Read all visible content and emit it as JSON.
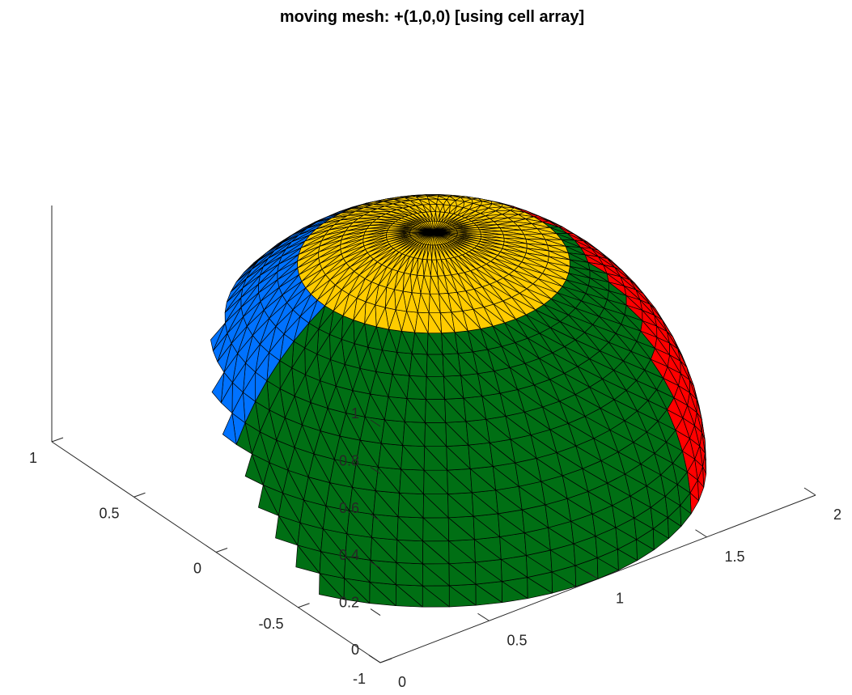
{
  "chart_data": {
    "type": "surface",
    "title": "moving mesh: +(1,0,0) [using cell array]",
    "translation": [
      1,
      0,
      0
    ],
    "patches": [
      {
        "color": "#0072ff",
        "x_range": [
          0,
          2
        ],
        "y_range": [
          0,
          1
        ],
        "z_range": [
          0,
          1
        ]
      },
      {
        "color": "#006f14",
        "x_range": [
          0,
          2
        ],
        "y_range": [
          -1,
          0
        ],
        "z_range": [
          0,
          1
        ]
      },
      {
        "color": "#ff0000",
        "x_range": [
          1,
          2
        ],
        "y_range": [
          -1,
          1
        ],
        "z_range": [
          0,
          1
        ]
      },
      {
        "color": "#ffcc00",
        "x_range": [
          0.6,
          1.4
        ],
        "y_range": [
          -0.6,
          0.6
        ],
        "z_range": [
          0.8,
          1
        ]
      }
    ],
    "shape": "hemisphere",
    "center": [
      1,
      0,
      0
    ],
    "radius": 1,
    "xlim": [
      0,
      2
    ],
    "ylim": [
      -1,
      1
    ],
    "zlim": [
      0,
      1
    ],
    "xticks": [
      "0",
      "0.5",
      "1",
      "1.5",
      "2"
    ],
    "yticks": [
      "-1",
      "-0.5",
      "0",
      "0.5",
      "1"
    ],
    "zticks": [
      "0",
      "0.2",
      "0.4",
      "0.6",
      "0.8",
      "1"
    ],
    "edge_color": "#000000",
    "grid": false
  }
}
